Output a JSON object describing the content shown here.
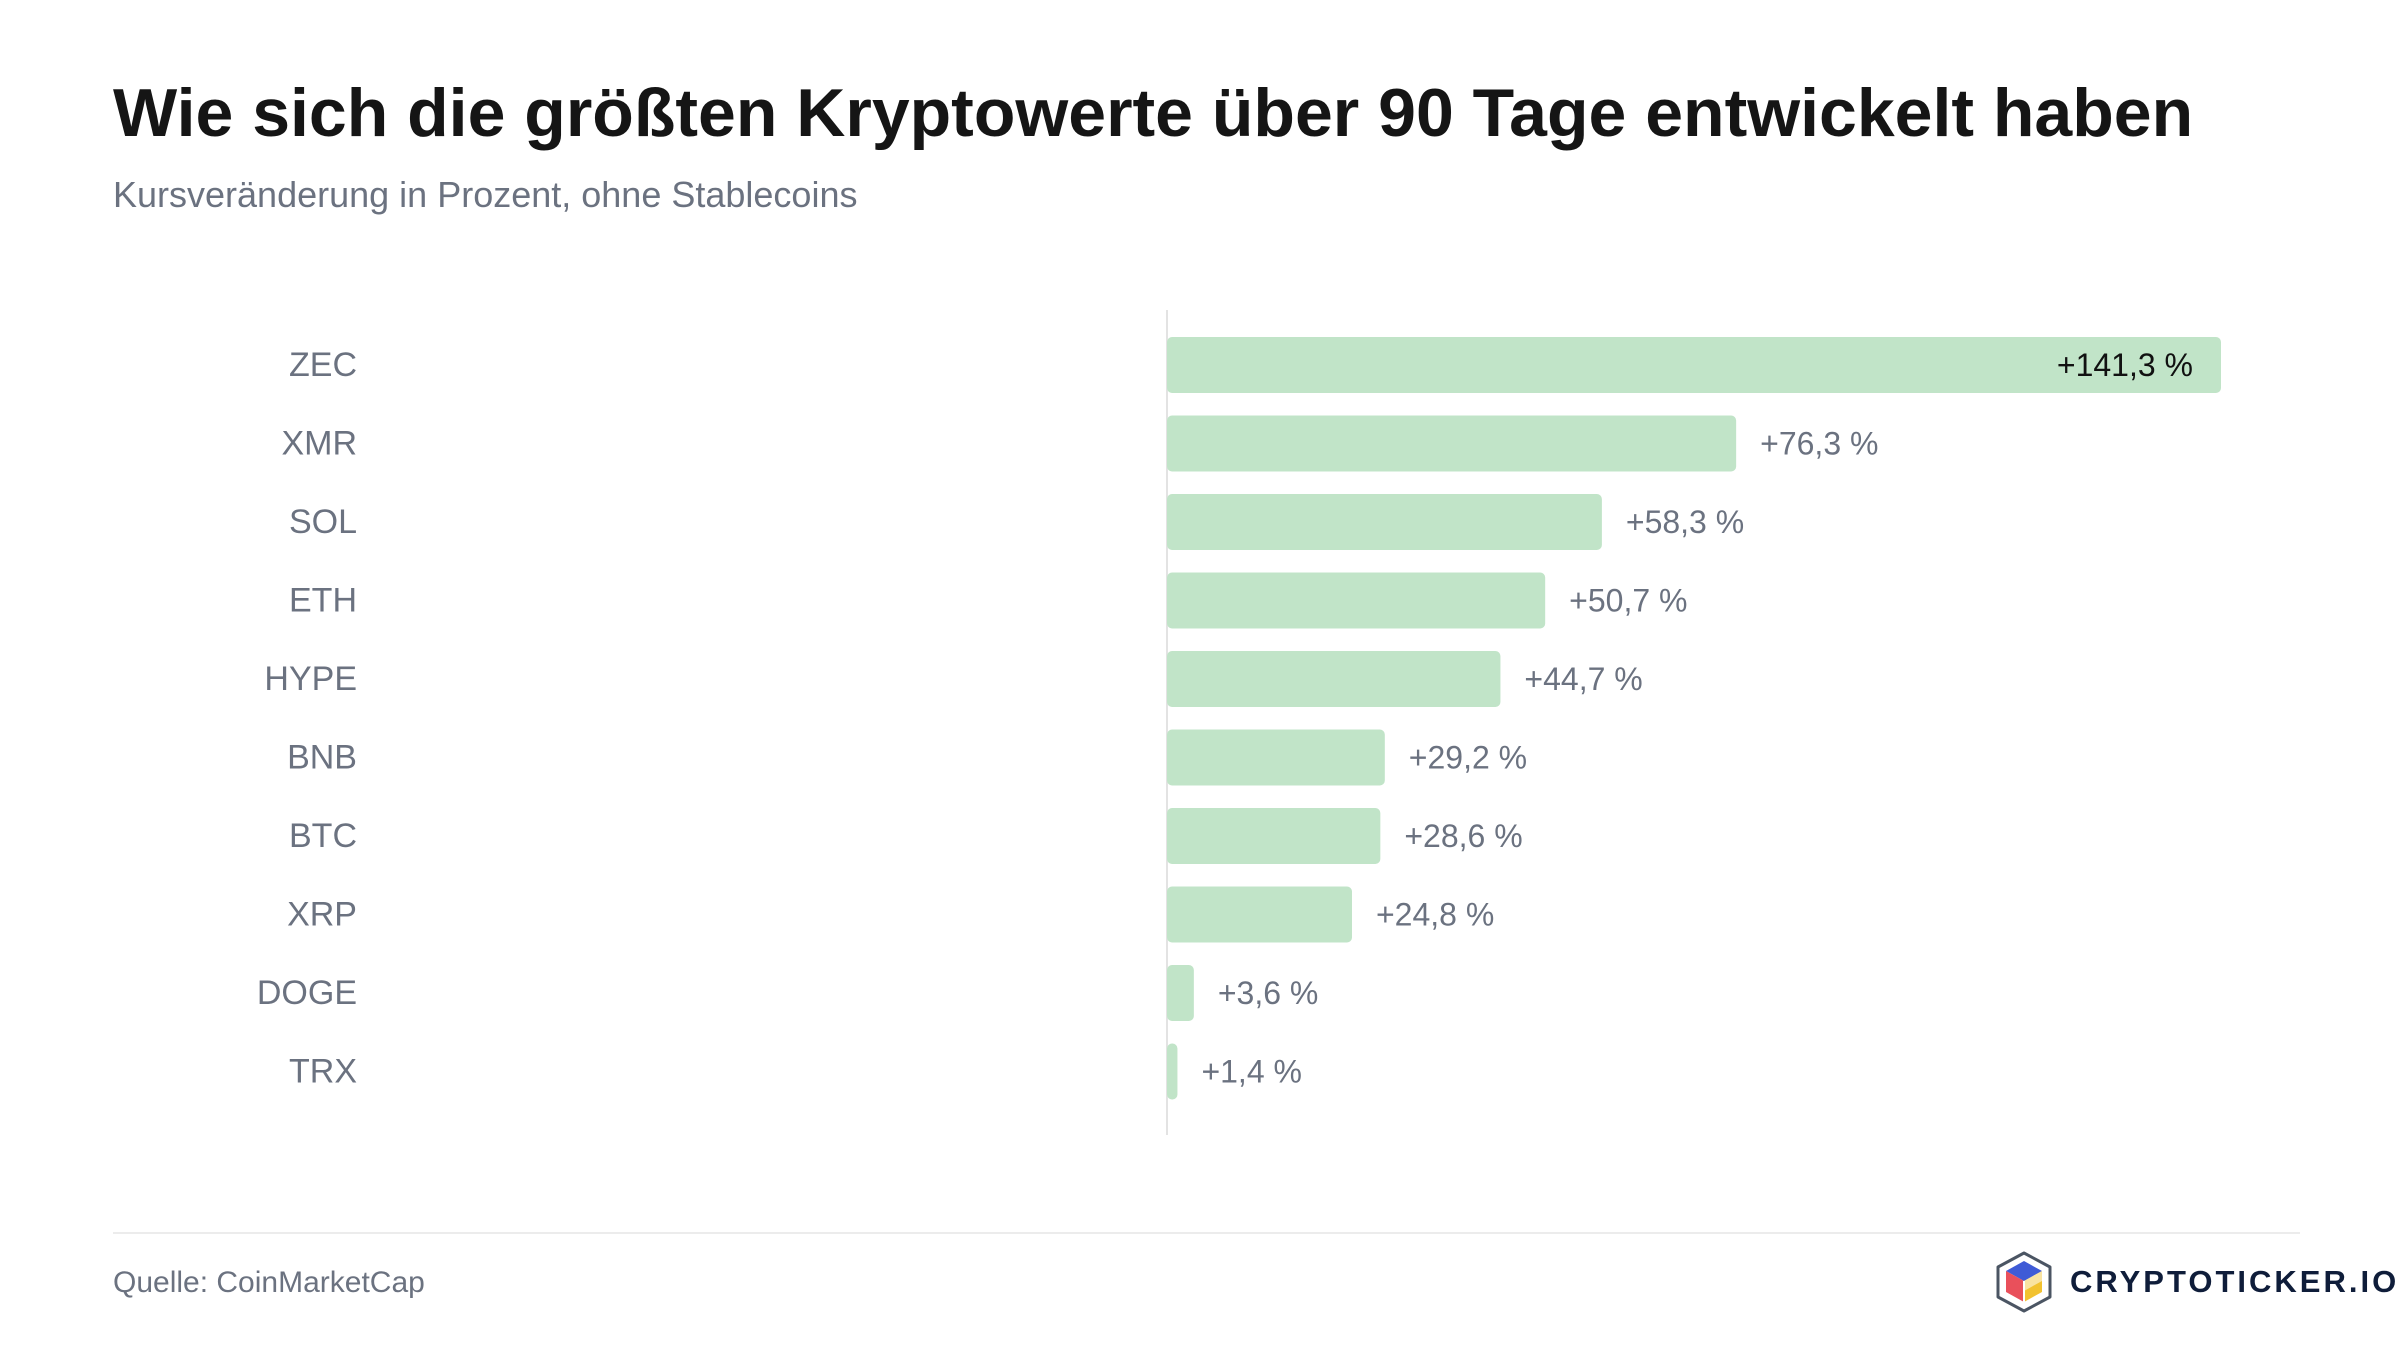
{
  "header": {
    "title": "Wie sich die größten Kryptowerte über 90 Tage entwickelt haben",
    "subtitle": "Kursveränderung in Prozent, ohne Stablecoins"
  },
  "footer": {
    "source": "Quelle: CoinMarketCap",
    "brand": "CRYPTOTICKER.IO",
    "brand_logo_icon": "cube-logo-icon"
  },
  "colors": {
    "bar": "#c1e4c8",
    "label_outside": "#6b7280",
    "label_inside": "#111111",
    "category": "#6b7280",
    "axis": "#e3e3e3"
  },
  "chart_data": {
    "type": "bar",
    "orientation": "horizontal",
    "categories": [
      "ZEC",
      "XMR",
      "SOL",
      "ETH",
      "HYPE",
      "BNB",
      "BTC",
      "XRP",
      "DOGE",
      "TRX"
    ],
    "values": [
      141.3,
      76.3,
      58.3,
      50.7,
      44.7,
      29.2,
      28.6,
      24.8,
      3.6,
      1.4
    ],
    "value_labels": [
      "+141,3 %",
      "+76,3 %",
      "+58,3 %",
      "+50,7 %",
      "+44,7 %",
      "+29,2 %",
      "+28,6 %",
      "+24,8 %",
      "+3,6 %",
      "+1,4 %"
    ],
    "xlim": [
      0,
      141.3
    ],
    "grid": false,
    "title": "Wie sich die größten Kryptowerte über 90 Tage entwickelt haben",
    "subtitle": "Kursveränderung in Prozent, ohne Stablecoins"
  }
}
